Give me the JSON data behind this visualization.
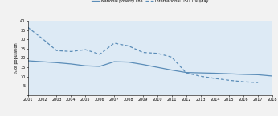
{
  "years": [
    2001,
    2002,
    2003,
    2004,
    2005,
    2006,
    2007,
    2008,
    2009,
    2010,
    2011,
    2012,
    2013,
    2014,
    2015,
    2016,
    2017,
    2018
  ],
  "national_poverty": [
    18.5,
    18.0,
    17.5,
    16.8,
    15.8,
    15.5,
    18.0,
    17.8,
    16.5,
    15.0,
    13.5,
    12.2,
    12.0,
    11.8,
    11.5,
    11.2,
    11.0,
    10.3
  ],
  "international_usd": [
    36.5,
    30.5,
    24.0,
    23.5,
    24.5,
    22.0,
    28.0,
    26.5,
    23.0,
    22.5,
    20.5,
    12.0,
    10.2,
    9.0,
    8.0,
    7.2,
    6.8,
    null
  ],
  "line_color": "#5b8db8",
  "legend_label_national": "National poverty line",
  "legend_label_international": "International USD 1.90/day",
  "ylabel": "% of population",
  "ylim": [
    0,
    40
  ],
  "yticks": [
    0,
    5,
    10,
    15,
    20,
    25,
    30,
    35,
    40
  ],
  "plot_bg_color": "#ddeaf5",
  "fig_bg_color": "#f2f2f2"
}
